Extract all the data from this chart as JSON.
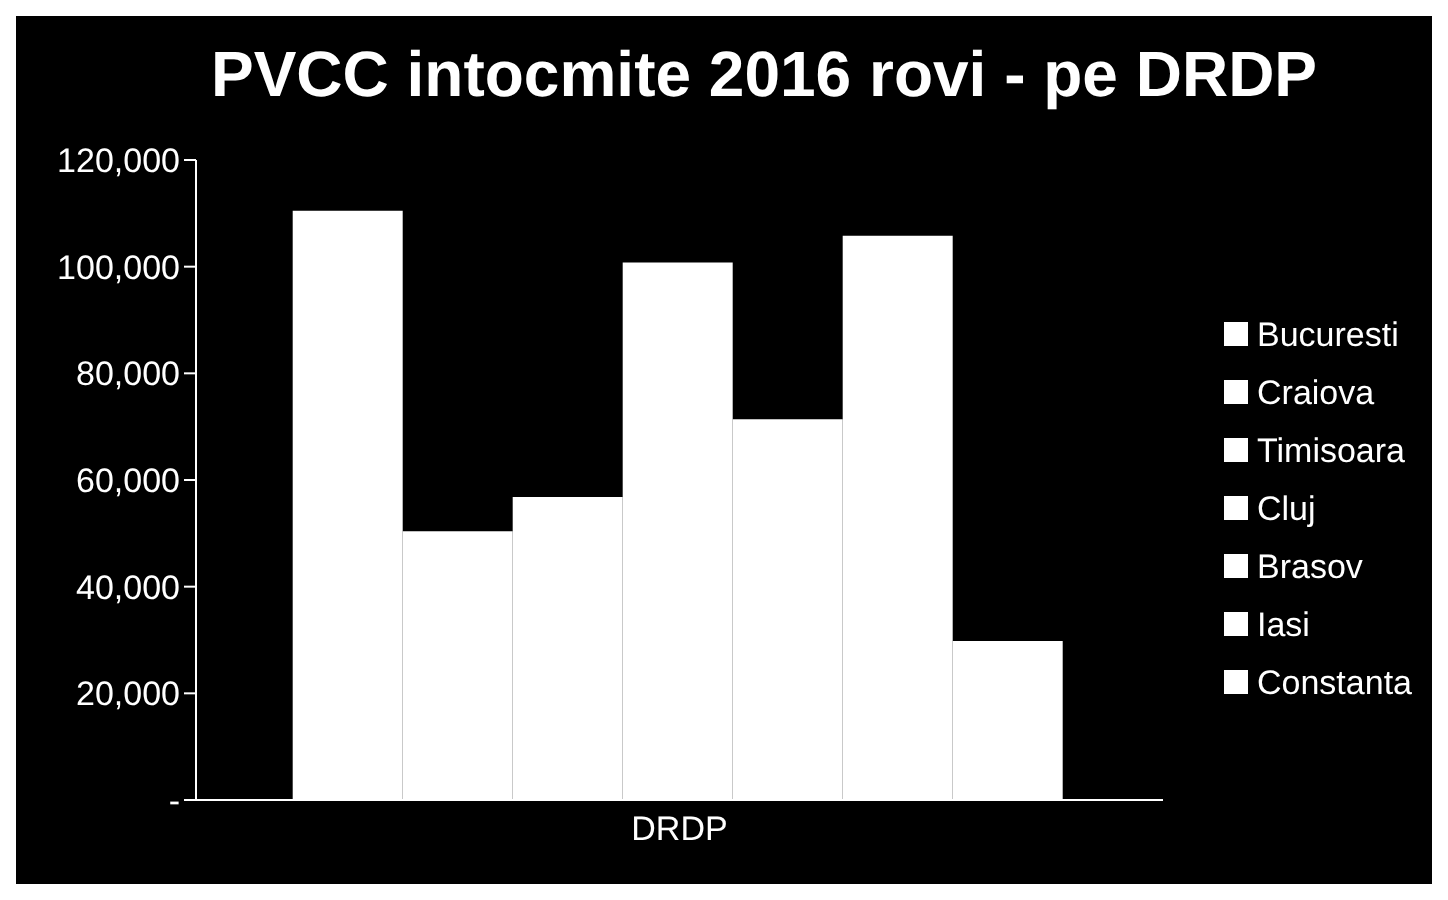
{
  "chart_data": {
    "type": "bar",
    "title": "PVCC intocmite 2016 rovi - pe DRDP",
    "categories": [
      "DRDP"
    ],
    "series": [
      {
        "name": "Bucuresti",
        "color": "#ffffff",
        "values": [
          110500
        ]
      },
      {
        "name": "Craiova",
        "color": "#ffffff",
        "values": [
          50400
        ]
      },
      {
        "name": "Timisoara",
        "color": "#ffffff",
        "values": [
          56800
        ]
      },
      {
        "name": "Cluj",
        "color": "#ffffff",
        "values": [
          100800
        ]
      },
      {
        "name": "Brasov",
        "color": "#ffffff",
        "values": [
          71400
        ]
      },
      {
        "name": "Iasi",
        "color": "#ffffff",
        "values": [
          105800
        ]
      },
      {
        "name": "Constanta",
        "color": "#ffffff",
        "values": [
          29800
        ]
      }
    ],
    "ylim": [
      0,
      120000
    ],
    "yticks": [
      {
        "value": 0,
        "label": "-"
      },
      {
        "value": 20000,
        "label": "20,000"
      },
      {
        "value": 40000,
        "label": "40,000"
      },
      {
        "value": 60000,
        "label": "60,000"
      },
      {
        "value": 80000,
        "label": "80,000"
      },
      {
        "value": 100000,
        "label": "100,000"
      },
      {
        "value": 120000,
        "label": "120,000"
      }
    ],
    "grid": false,
    "legend": "right"
  }
}
